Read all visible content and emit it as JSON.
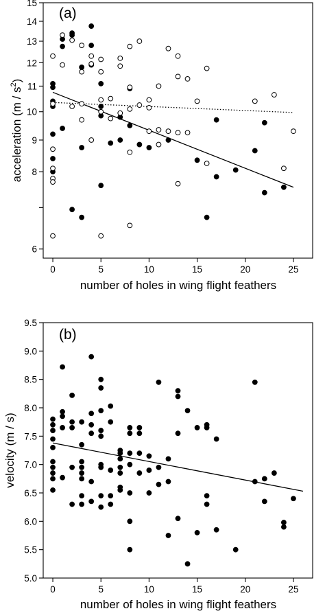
{
  "chart_data": [
    {
      "type": "scatter",
      "panel_label": "(a)",
      "xlabel": "number of holes in wing flight feathers",
      "ylabel_main": "acceleration (m / s",
      "ylabel_sup": "2",
      "ylabel_close": ")",
      "ylabel": "acceleration (m / s²)",
      "y_scale": "log",
      "xlim": [
        -1,
        27
      ],
      "ylim": [
        5.8,
        15
      ],
      "x_ticks": [
        0,
        5,
        10,
        15,
        20,
        25
      ],
      "x_tick_labels": [
        "0",
        "5",
        "10",
        "15",
        "20",
        "25"
      ],
      "y_ticks": [
        6,
        7,
        8,
        9,
        10,
        11,
        12,
        13,
        14,
        15
      ],
      "y_tick_labels": [
        "6",
        "",
        "8",
        "9",
        "10",
        "11",
        "12",
        "13",
        "14",
        "15"
      ],
      "grid": false,
      "series": [
        {
          "marker": "filled-circle",
          "points": [
            [
              0,
              11.1
            ],
            [
              0,
              10.95
            ],
            [
              0,
              10.4
            ],
            [
              0,
              10.2
            ],
            [
              0,
              9.2
            ],
            [
              0,
              8.4
            ],
            [
              0,
              8.0
            ],
            [
              1,
              13.1
            ],
            [
              1,
              12.75
            ],
            [
              1,
              9.4
            ],
            [
              2,
              13.4
            ],
            [
              2,
              13.3
            ],
            [
              2,
              6.95
            ],
            [
              3,
              11.8
            ],
            [
              3,
              8.75
            ],
            [
              3,
              6.75
            ],
            [
              4,
              13.75
            ],
            [
              4,
              12.8
            ],
            [
              4,
              11.9
            ],
            [
              5,
              11.1
            ],
            [
              5,
              10.2
            ],
            [
              5,
              9.85
            ],
            [
              5,
              7.6
            ],
            [
              6,
              8.9
            ],
            [
              7,
              9.8
            ],
            [
              7,
              9.0
            ],
            [
              8,
              10.9
            ],
            [
              8,
              9.5
            ],
            [
              9,
              8.85
            ],
            [
              10,
              8.75
            ],
            [
              12,
              9.0
            ],
            [
              15,
              8.35
            ],
            [
              16,
              6.75
            ],
            [
              17,
              7.85
            ],
            [
              17,
              9.7
            ],
            [
              19,
              8.05
            ],
            [
              21,
              8.65
            ],
            [
              22,
              9.6
            ],
            [
              22,
              7.4
            ],
            [
              24,
              7.55
            ]
          ],
          "fit": [
            [
              0,
              10.75
            ],
            [
              25,
              7.55
            ]
          ],
          "fit_style": "solid"
        },
        {
          "marker": "open-circle",
          "points": [
            [
              0,
              12.3
            ],
            [
              0,
              10.3
            ],
            [
              0,
              8.7
            ],
            [
              0,
              8.1
            ],
            [
              0,
              7.8
            ],
            [
              0,
              7.7
            ],
            [
              0,
              6.3
            ],
            [
              1,
              13.3
            ],
            [
              1,
              11.9
            ],
            [
              2,
              13.05
            ],
            [
              2,
              10.2
            ],
            [
              3,
              12.8
            ],
            [
              3,
              11.6
            ],
            [
              3,
              10.3
            ],
            [
              3,
              9.7
            ],
            [
              4,
              12.3
            ],
            [
              4,
              11.95
            ],
            [
              4,
              9.0
            ],
            [
              5,
              12.15
            ],
            [
              5,
              11.6
            ],
            [
              5,
              10.45
            ],
            [
              5,
              10.0
            ],
            [
              5,
              6.3
            ],
            [
              6,
              10.5
            ],
            [
              6,
              9.75
            ],
            [
              7,
              12.2
            ],
            [
              7,
              11.85
            ],
            [
              7,
              9.95
            ],
            [
              8,
              12.75
            ],
            [
              8,
              10.95
            ],
            [
              8,
              10.1
            ],
            [
              8,
              8.6
            ],
            [
              8,
              6.55
            ],
            [
              9,
              13.0
            ],
            [
              9,
              10.25
            ],
            [
              10,
              10.45
            ],
            [
              10,
              10.15
            ],
            [
              10,
              9.3
            ],
            [
              11,
              11.0
            ],
            [
              11,
              9.35
            ],
            [
              11,
              8.85
            ],
            [
              12,
              12.65
            ],
            [
              12,
              9.3
            ],
            [
              13,
              12.3
            ],
            [
              13,
              11.4
            ],
            [
              13,
              9.25
            ],
            [
              13,
              7.65
            ],
            [
              14,
              11.3
            ],
            [
              14,
              9.25
            ],
            [
              15,
              10.4
            ],
            [
              16,
              11.75
            ],
            [
              16,
              8.25
            ],
            [
              21,
              10.4
            ],
            [
              23,
              10.65
            ],
            [
              24,
              8.1
            ],
            [
              25,
              9.3
            ]
          ],
          "fit": [
            [
              0,
              10.35
            ],
            [
              25,
              9.97
            ]
          ],
          "fit_style": "dotted"
        }
      ]
    },
    {
      "type": "scatter",
      "panel_label": "(b)",
      "xlabel": "number of holes in wing flight feathers",
      "ylabel": "velocity (m / s)",
      "xlim": [
        -1,
        27
      ],
      "ylim": [
        5.0,
        9.5
      ],
      "x_ticks": [
        0,
        5,
        10,
        15,
        20,
        25
      ],
      "x_tick_labels": [
        "0",
        "5",
        "10",
        "15",
        "20",
        "25"
      ],
      "y_ticks": [
        5.0,
        5.5,
        6.0,
        6.5,
        7.0,
        7.5,
        8.0,
        8.5,
        9.0,
        9.5
      ],
      "y_tick_labels": [
        "5.0",
        "5.5",
        "6.0",
        "6.5",
        "7.0",
        "7.5",
        "8.0",
        "8.5",
        "9.0",
        "9.5"
      ],
      "grid": false,
      "series": [
        {
          "marker": "filled-circle",
          "points": [
            [
              0,
              7.8
            ],
            [
              0,
              7.7
            ],
            [
              0,
              7.6
            ],
            [
              0,
              7.45
            ],
            [
              0,
              7.3
            ],
            [
              0,
              7.05
            ],
            [
              0,
              6.95
            ],
            [
              0,
              6.85
            ],
            [
              0,
              6.75
            ],
            [
              0,
              6.55
            ],
            [
              1,
              8.72
            ],
            [
              1,
              7.93
            ],
            [
              1,
              7.85
            ],
            [
              1,
              7.65
            ],
            [
              1,
              6.77
            ],
            [
              2,
              8.22
            ],
            [
              2,
              7.75
            ],
            [
              2,
              7.65
            ],
            [
              2,
              6.95
            ],
            [
              2,
              6.3
            ],
            [
              3,
              7.75
            ],
            [
              3,
              7.35
            ],
            [
              3,
              7.05
            ],
            [
              3,
              6.95
            ],
            [
              3,
              6.85
            ],
            [
              3,
              6.75
            ],
            [
              3,
              6.45
            ],
            [
              3,
              6.3
            ],
            [
              4,
              8.9
            ],
            [
              4,
              7.9
            ],
            [
              4,
              7.7
            ],
            [
              4,
              7.55
            ],
            [
              4,
              6.7
            ],
            [
              4,
              6.35
            ],
            [
              5,
              8.5
            ],
            [
              5,
              8.35
            ],
            [
              5,
              7.95
            ],
            [
              5,
              7.6
            ],
            [
              5,
              7.5
            ],
            [
              5,
              7.0
            ],
            [
              5,
              6.95
            ],
            [
              5,
              6.45
            ],
            [
              5,
              6.25
            ],
            [
              6,
              8.03
            ],
            [
              6,
              7.75
            ],
            [
              6,
              6.9
            ],
            [
              6,
              6.45
            ],
            [
              6,
              6.3
            ],
            [
              7,
              7.25
            ],
            [
              7,
              7.2
            ],
            [
              7,
              7.1
            ],
            [
              7,
              6.95
            ],
            [
              7,
              6.85
            ],
            [
              7,
              6.6
            ],
            [
              7,
              6.55
            ],
            [
              8,
              7.65
            ],
            [
              8,
              7.55
            ],
            [
              8,
              7.2
            ],
            [
              8,
              7.0
            ],
            [
              8,
              6.5
            ],
            [
              8,
              6.0
            ],
            [
              8,
              5.5
            ],
            [
              9,
              7.65
            ],
            [
              9,
              7.55
            ],
            [
              9,
              7.2
            ],
            [
              9,
              6.85
            ],
            [
              10,
              7.15
            ],
            [
              10,
              6.9
            ],
            [
              10,
              6.5
            ],
            [
              11,
              8.45
            ],
            [
              11,
              6.95
            ],
            [
              11,
              6.65
            ],
            [
              12,
              7.1
            ],
            [
              12,
              6.7
            ],
            [
              12,
              5.75
            ],
            [
              13,
              8.3
            ],
            [
              13,
              8.2
            ],
            [
              13,
              7.55
            ],
            [
              13,
              6.05
            ],
            [
              14,
              7.95
            ],
            [
              14,
              5.25
            ],
            [
              15,
              7.65
            ],
            [
              15,
              5.8
            ],
            [
              16,
              7.7
            ],
            [
              16,
              7.65
            ],
            [
              16,
              6.45
            ],
            [
              16,
              6.3
            ],
            [
              17,
              7.45
            ],
            [
              17,
              5.85
            ],
            [
              19,
              5.5
            ],
            [
              21,
              8.45
            ],
            [
              21,
              6.7
            ],
            [
              22,
              6.75
            ],
            [
              22,
              6.35
            ],
            [
              23,
              6.85
            ],
            [
              24,
              5.98
            ],
            [
              24,
              5.9
            ],
            [
              25,
              6.4
            ]
          ],
          "fit": [
            [
              0,
              7.38
            ],
            [
              26,
              6.53
            ]
          ],
          "fit_style": "solid"
        }
      ]
    }
  ]
}
